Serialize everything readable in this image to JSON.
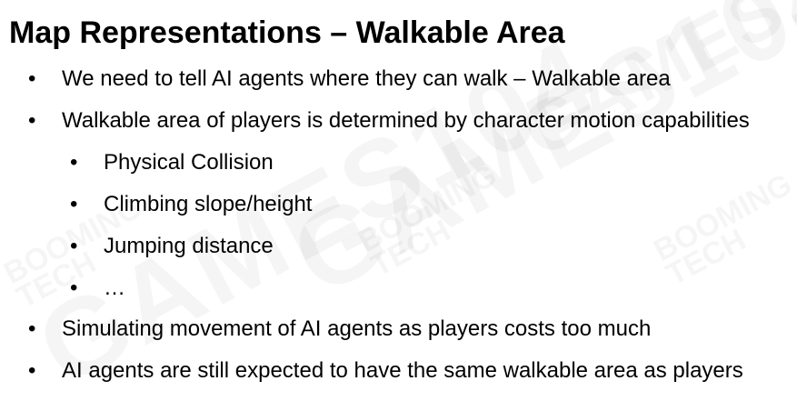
{
  "slide": {
    "title": "Map Representations – Walkable Area",
    "bullet_symbol": "•",
    "bullets": [
      "We need to tell AI agents where they can walk – Walkable area",
      "Walkable area of players is determined by character motion capabilities",
      "Physical Collision",
      "Climbing slope/height",
      "Jumping distance",
      "…",
      "Simulating movement of AI agents as players costs too much",
      "AI agents are still expected to have the same walkable area as players"
    ]
  },
  "watermark": {
    "primary": "GAMES104",
    "secondary_line1": "BOOMING",
    "secondary_line2": "TECH"
  }
}
